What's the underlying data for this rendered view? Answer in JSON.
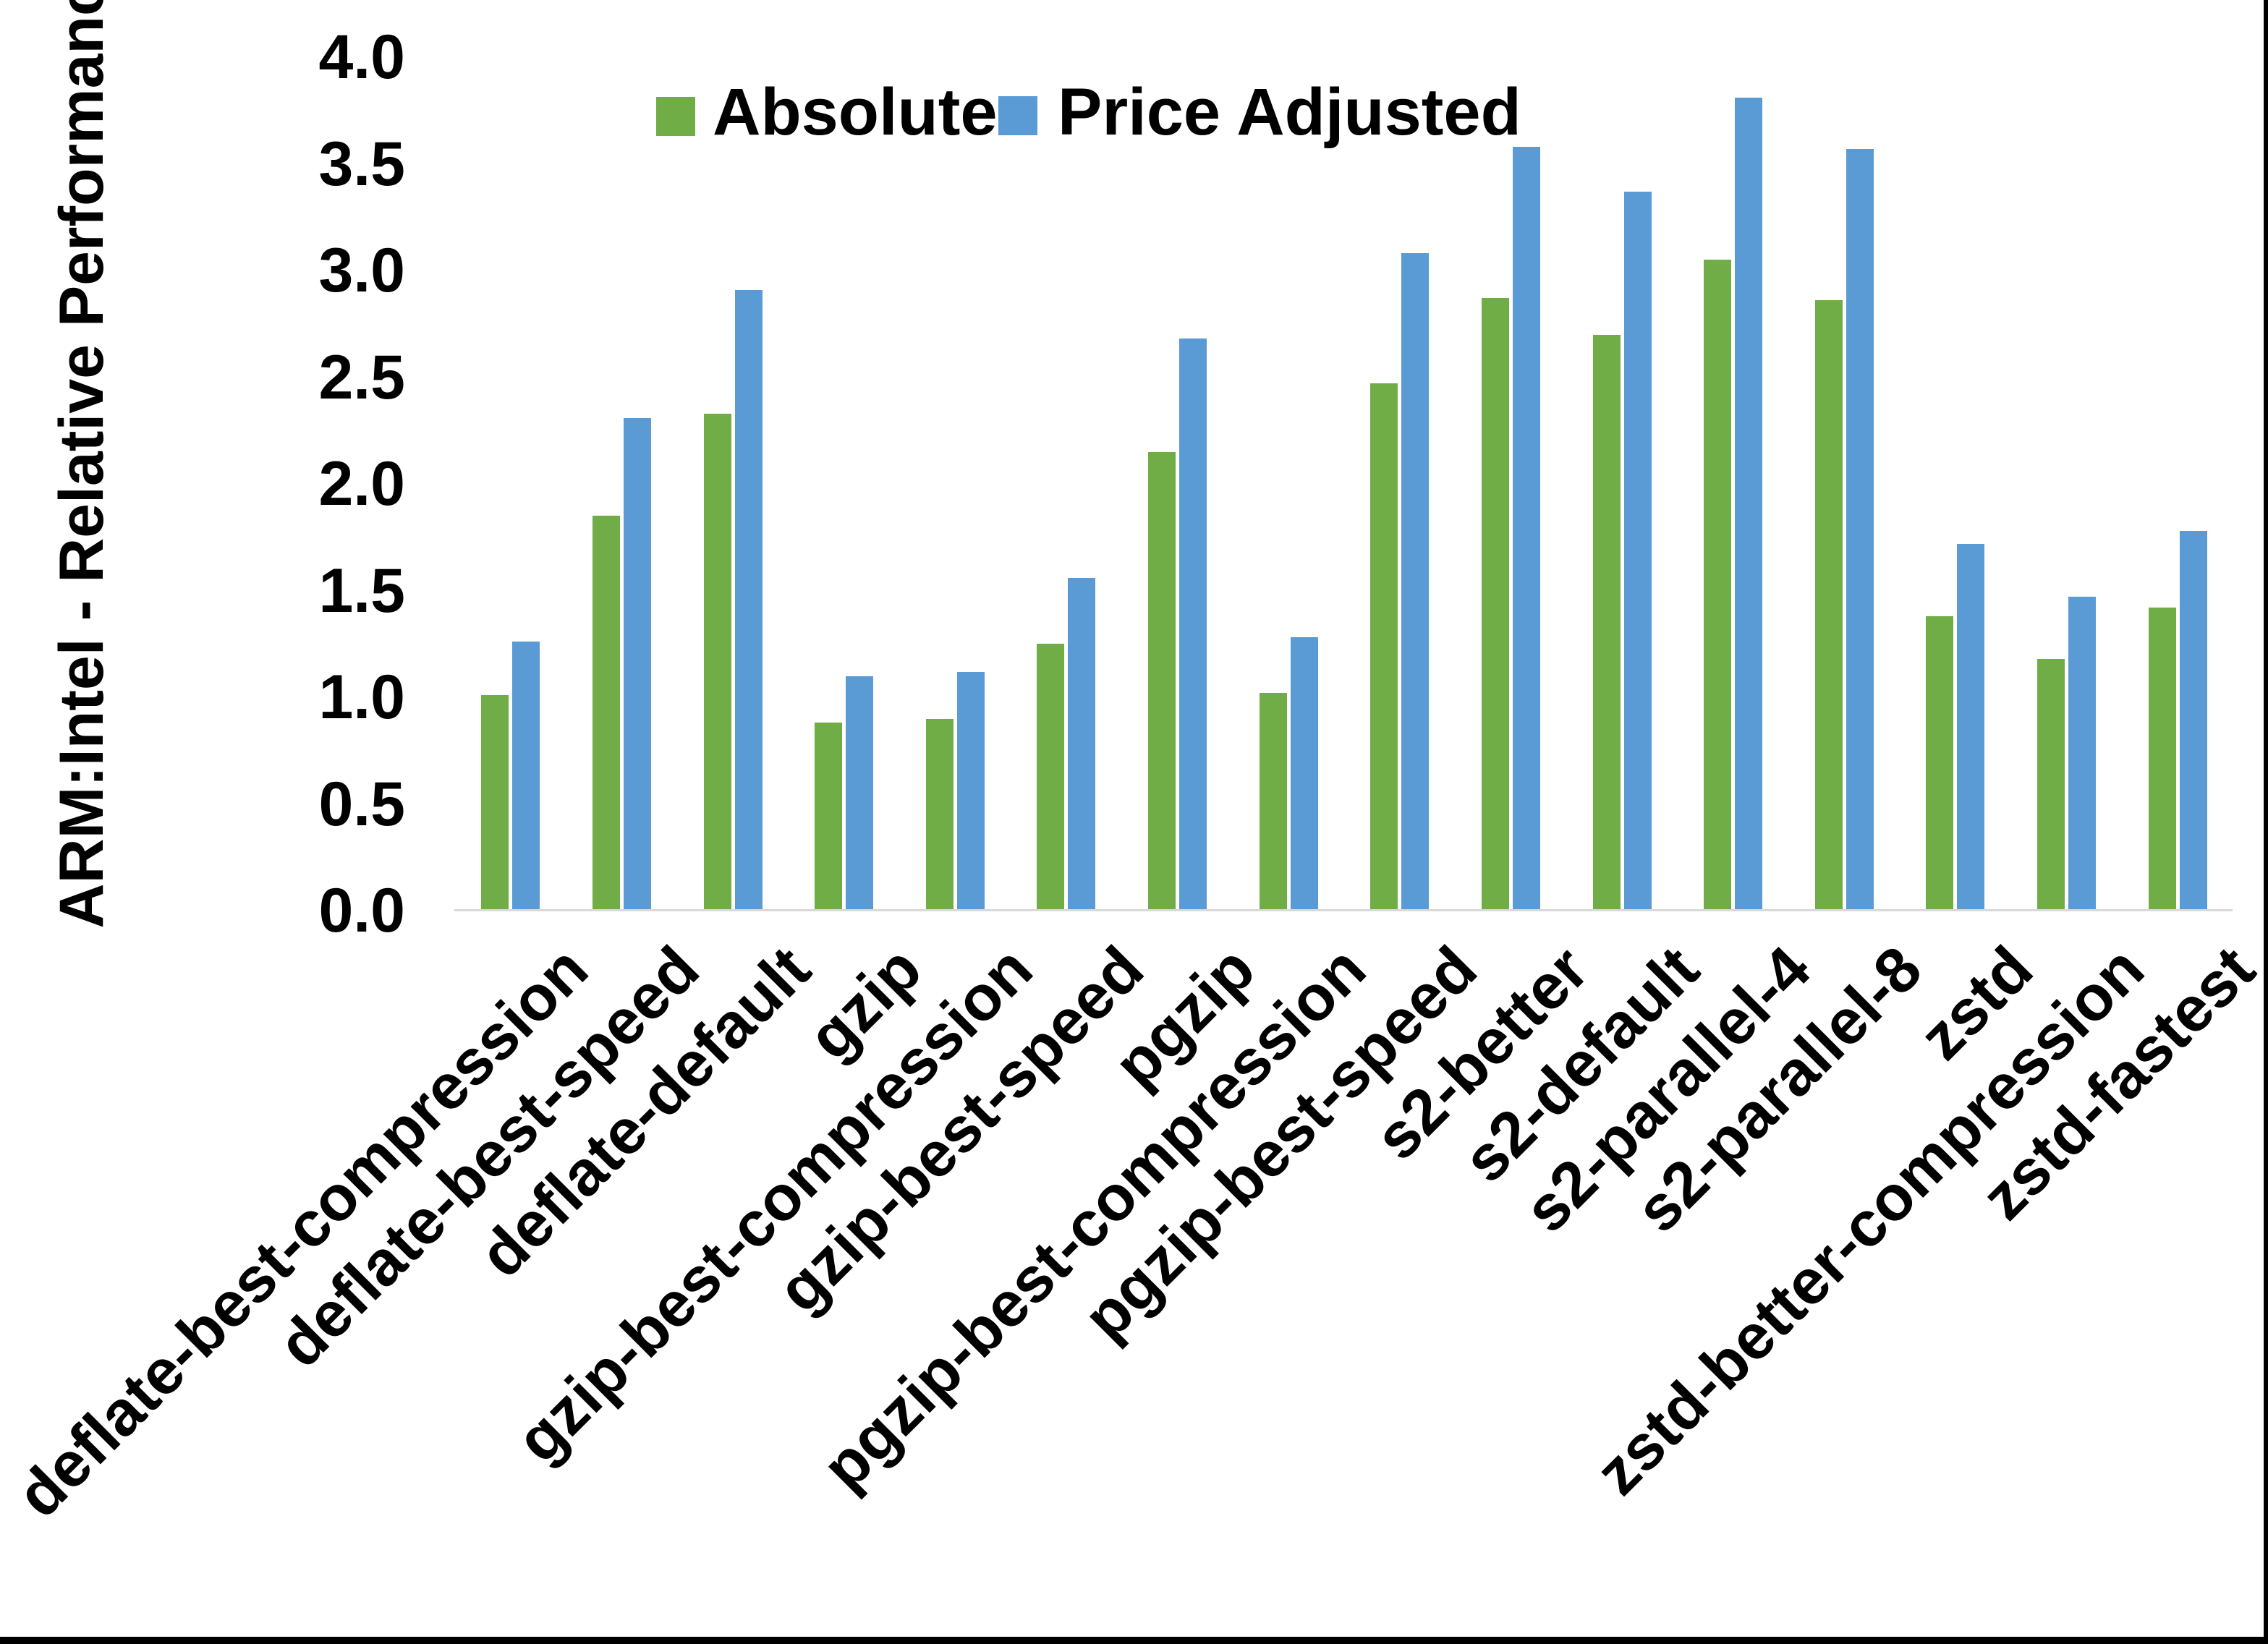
{
  "chart_data": {
    "type": "bar",
    "title": "",
    "ylabel": "ARM:Intel - Relative Performance",
    "xlabel": "",
    "ylim": [
      0.0,
      4.0
    ],
    "y_ticks": [
      "0.0",
      "0.5",
      "1.0",
      "1.5",
      "2.0",
      "2.5",
      "3.0",
      "3.5",
      "4.0"
    ],
    "grid": "off",
    "legend_position": "top-center",
    "categories": [
      "deflate-best-compression",
      "deflate-best-speed",
      "deflate-default",
      "gzip",
      "gzip-best-compression",
      "gzip-best-speed",
      "pgzip",
      "pgzip-best-compression",
      "pgzip-best-speed",
      "s2-better",
      "s2-default",
      "s2-parallel-4",
      "s2-parallel-8",
      "zstd",
      "zstd-better-compression",
      "zstd-fastest"
    ],
    "series": [
      {
        "name": "Absolute",
        "color": "#70AD47",
        "values": [
          1.01,
          1.85,
          2.33,
          0.88,
          0.9,
          1.25,
          2.15,
          1.02,
          2.47,
          2.87,
          2.7,
          3.05,
          2.86,
          1.38,
          1.18,
          1.42
        ]
      },
      {
        "name": "Price Adjusted",
        "color": "#5B9BD5",
        "values": [
          1.26,
          2.31,
          2.91,
          1.1,
          1.12,
          1.56,
          2.68,
          1.28,
          3.08,
          3.58,
          3.37,
          3.81,
          3.57,
          1.72,
          1.47,
          1.78
        ]
      }
    ],
    "axis_line_color": "#D9D9D9"
  }
}
